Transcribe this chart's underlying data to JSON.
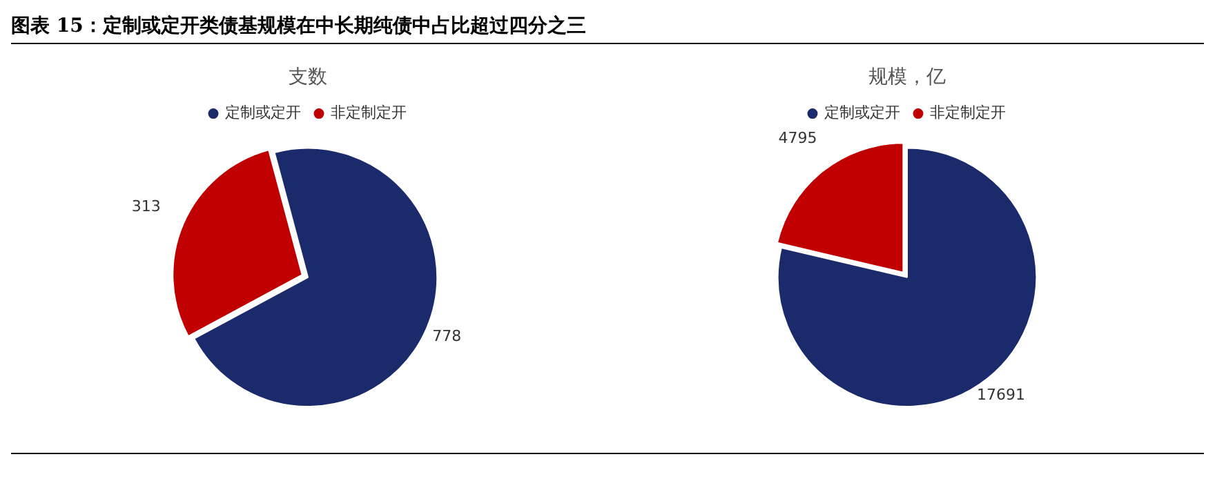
{
  "chart_data": [
    {
      "type": "pie",
      "title": "支数",
      "annotations": [
        "图表 15：定制或定开类债基规模在中长期纯债中占比超过四分之三"
      ],
      "categories": [
        "定制或定开",
        "非定制定开"
      ],
      "values": [
        778,
        313
      ],
      "colors": [
        "#1b2a6b",
        "#c00000"
      ],
      "legend": "top",
      "data_labels": true
    },
    {
      "type": "pie",
      "title": "规模，亿",
      "categories": [
        "定制或定开",
        "非定制定开"
      ],
      "values": [
        17691,
        4795
      ],
      "colors": [
        "#1b2a6b",
        "#c00000"
      ],
      "legend": "top",
      "data_labels": true
    }
  ]
}
